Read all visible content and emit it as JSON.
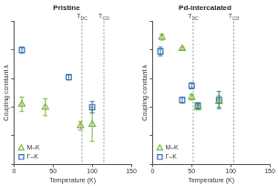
{
  "chart_data": [
    {
      "type": "scatter",
      "title": "Pristine",
      "x_label": "Temperature (K)",
      "y_label": "Coupling constant λ",
      "xlim": [
        0,
        150
      ],
      "xticks": [
        0,
        50,
        100,
        150
      ],
      "ylim": [
        0,
        1
      ],
      "yticks": [
        0,
        0.2,
        0.4,
        0.6,
        0.8,
        1
      ],
      "tick_labels": "x",
      "grid": false,
      "legend": "lower left",
      "vlines": [
        {
          "x": 87,
          "label": "T",
          "subscript": "DC"
        },
        {
          "x": 115,
          "label": "T",
          "subscript": "CO"
        }
      ],
      "series": [
        {
          "name": "M–K",
          "color": "#7cb342",
          "marker": "triangle",
          "x": [
            10,
            40,
            85,
            100
          ],
          "values": [
            0.42,
            0.4,
            0.27,
            0.28
          ],
          "errors": [
            0.05,
            0.06,
            0.03,
            0.12
          ]
        },
        {
          "name": "Γ–K",
          "color": "#2f6fb5",
          "marker": "square",
          "x": [
            10,
            70,
            100
          ],
          "values": [
            0.8,
            0.61,
            0.4
          ],
          "errors": [
            0.02,
            0.02,
            0.04
          ]
        }
      ]
    },
    {
      "type": "scatter",
      "title": "Pd-intercalated",
      "x_label": "Temperature (K)",
      "y_label": "Coupling constant λ",
      "xlim": [
        0,
        150
      ],
      "xticks": [
        0,
        50,
        100,
        150
      ],
      "ylim": [
        0,
        1
      ],
      "yticks": [
        0,
        0.2,
        0.4,
        0.6,
        0.8,
        1
      ],
      "tick_labels": "x",
      "grid": false,
      "legend": "lower left",
      "vlines": [
        {
          "x": 52,
          "label": "T",
          "subscript": "DC"
        },
        {
          "x": 104,
          "label": "T",
          "subscript": "CO"
        }
      ],
      "series": [
        {
          "name": "M–K",
          "color": "#7cb342",
          "marker": "triangle",
          "x": [
            12,
            38,
            50,
            58,
            85
          ],
          "values": [
            0.89,
            0.81,
            0.47,
            0.4,
            0.44
          ],
          "errors": [
            0.02,
            0.01,
            0.02,
            0.02,
            0.04
          ]
        },
        {
          "name": "Γ–K",
          "color": "#2f6fb5",
          "marker": "square",
          "x": [
            10,
            38,
            50,
            58,
            85
          ],
          "values": [
            0.79,
            0.45,
            0.55,
            0.41,
            0.45
          ],
          "errors": [
            0.03,
            0.02,
            0.02,
            0.02,
            0.06
          ]
        }
      ]
    }
  ]
}
